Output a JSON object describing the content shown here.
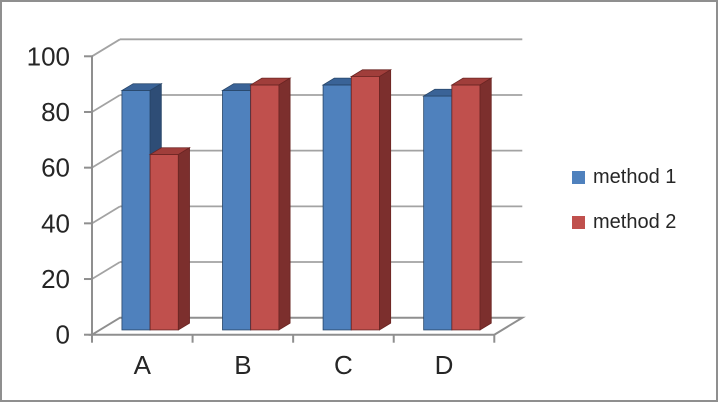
{
  "frame": {
    "border_color": "#8f8f8f",
    "background_color": "#ffffff"
  },
  "chart_data": {
    "type": "bar",
    "variant": "3d-clustered-column",
    "title": "",
    "xlabel": "",
    "ylabel": "",
    "categories": [
      "A",
      "B",
      "C",
      "D"
    ],
    "series": [
      {
        "name": "method 1",
        "values": [
          86,
          86,
          88,
          84
        ],
        "color": "#4F81BD",
        "color_top": "#3A6397",
        "color_side": "#2E4D76",
        "color_edge": "#274568"
      },
      {
        "name": "method 2",
        "values": [
          63,
          88,
          91,
          88
        ],
        "color": "#C0504D",
        "color_top": "#A03E3B",
        "color_side": "#7C2F2D",
        "color_edge": "#6B2523"
      }
    ],
    "ylim": [
      0,
      100
    ],
    "ytick_step": 20,
    "ytick_labels": [
      "0",
      "20",
      "40",
      "60",
      "80",
      "100"
    ],
    "grid": true,
    "legend_position": "right",
    "gridline_color": "#a3a3a3",
    "axis_color": "#8f8f8f",
    "text_color": "#262626"
  }
}
